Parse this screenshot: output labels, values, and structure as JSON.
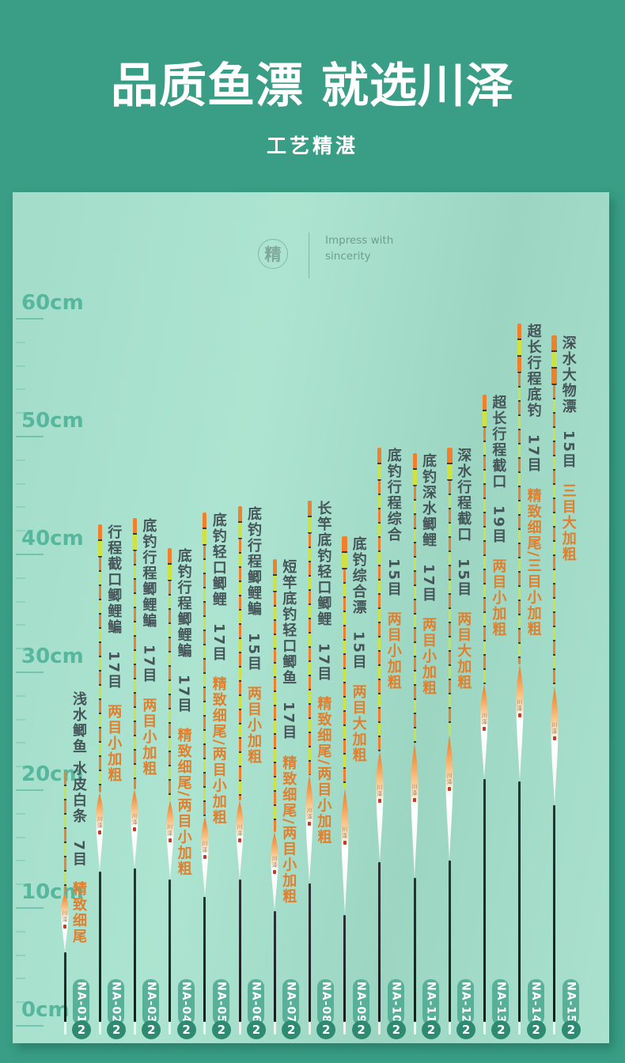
{
  "header": {
    "title": "品质鱼漂 就选川泽",
    "subtitle": "工艺精湛"
  },
  "watermark": {
    "seal": "精",
    "slogan": "Impress with sincerity"
  },
  "ruler": {
    "unit": "cm",
    "labels": [
      "60cm",
      "50cm",
      "40cm",
      "30cm",
      "20cm",
      "10cm",
      "0cm"
    ]
  },
  "colors": {
    "background": "#399e85",
    "panel": "#a6dfcb",
    "title": "#ffffff",
    "label_dark": "#46555a",
    "label_orange": "#e07f2e",
    "antenna_orange": "#f0802c",
    "antenna_green": "#cfe23f",
    "badge": "#57b097",
    "qty_circle": "#2e8a71",
    "ruler": "#56b79d"
  },
  "brand_mark": "川泽",
  "chart_data": {
    "type": "bar",
    "title": "品质鱼漂 就选川泽",
    "subtitle": "工艺精湛",
    "ylabel": "cm",
    "ylim": [
      0,
      60
    ],
    "axis_ticks_cm": [
      0,
      10,
      20,
      30,
      40,
      50,
      60
    ],
    "categories": [
      "NA-01",
      "NA-02",
      "NA-03",
      "NA-04",
      "NA-05",
      "NA-06",
      "NA-07",
      "NA-08",
      "NA-09",
      "NA-10",
      "NA-11",
      "NA-12",
      "NA-13",
      "NA-14",
      "NA-15"
    ],
    "values": [
      21.5,
      42.5,
      43,
      40.5,
      43.5,
      44,
      39.5,
      44.5,
      41.5,
      49,
      48.5,
      49,
      53.5,
      59.5,
      58.5
    ],
    "items": [
      {
        "model": "NA-01",
        "name": "浅水鲫鱼 水皮白条",
        "mesh": "7目",
        "feature": "精致细尾",
        "length_cm": 21.5,
        "qty": "2"
      },
      {
        "model": "NA-02",
        "name": "行程截口鲫鲤鳊",
        "mesh": "17目",
        "feature": "两目小加粗",
        "length_cm": 42.5,
        "qty": "2"
      },
      {
        "model": "NA-03",
        "name": "底钓行程鲫鲤鳊",
        "mesh": "17目",
        "feature": "两目小加粗",
        "length_cm": 43,
        "qty": "2"
      },
      {
        "model": "NA-04",
        "name": "底钓行程鲫鲤鳊",
        "mesh": "17目",
        "feature": "精致细尾/两目小加粗",
        "length_cm": 40.5,
        "qty": "2"
      },
      {
        "model": "NA-05",
        "name": "底钓轻口鲫鲤",
        "mesh": "17目",
        "feature": "精致细尾/两目小加粗",
        "length_cm": 43.5,
        "qty": "2"
      },
      {
        "model": "NA-06",
        "name": "底钓行程鲫鲤鳊",
        "mesh": "15目",
        "feature": "两目小加粗",
        "length_cm": 44,
        "qty": "2"
      },
      {
        "model": "NA-07",
        "name": "短竿底钓轻口鲫鱼",
        "mesh": "17目",
        "feature": "精致细尾/两目小加粗",
        "length_cm": 39.5,
        "qty": "2"
      },
      {
        "model": "NA-08",
        "name": "长竿底钓轻口鲫鲤",
        "mesh": "17目",
        "feature": "精致细尾/两目小加粗",
        "length_cm": 44.5,
        "qty": "2"
      },
      {
        "model": "NA-09",
        "name": "底钓综合漂",
        "mesh": "15目",
        "feature": "两目大加粗",
        "length_cm": 41.5,
        "qty": "2"
      },
      {
        "model": "NA-10",
        "name": "底钓行程综合",
        "mesh": "15目",
        "feature": "两目小加粗",
        "length_cm": 49,
        "qty": "2"
      },
      {
        "model": "NA-11",
        "name": "底钓深水鲫鲤",
        "mesh": "17目",
        "feature": "两目小加粗",
        "length_cm": 48.5,
        "qty": "2"
      },
      {
        "model": "NA-12",
        "name": "深水行程截口",
        "mesh": "15目",
        "feature": "两目大加粗",
        "length_cm": 49,
        "qty": "2"
      },
      {
        "model": "NA-13",
        "name": "超长行程截口",
        "mesh": "19目",
        "feature": "两目小加粗",
        "length_cm": 53.5,
        "qty": "2"
      },
      {
        "model": "NA-14",
        "name": "超长行程底钓",
        "mesh": "17目",
        "feature": "精致细尾/三目小加粗",
        "length_cm": 59.5,
        "qty": "2"
      },
      {
        "model": "NA-15",
        "name": "深水大物漂",
        "mesh": "15目",
        "feature": "三目大加粗",
        "length_cm": 58.5,
        "qty": "2"
      }
    ]
  }
}
